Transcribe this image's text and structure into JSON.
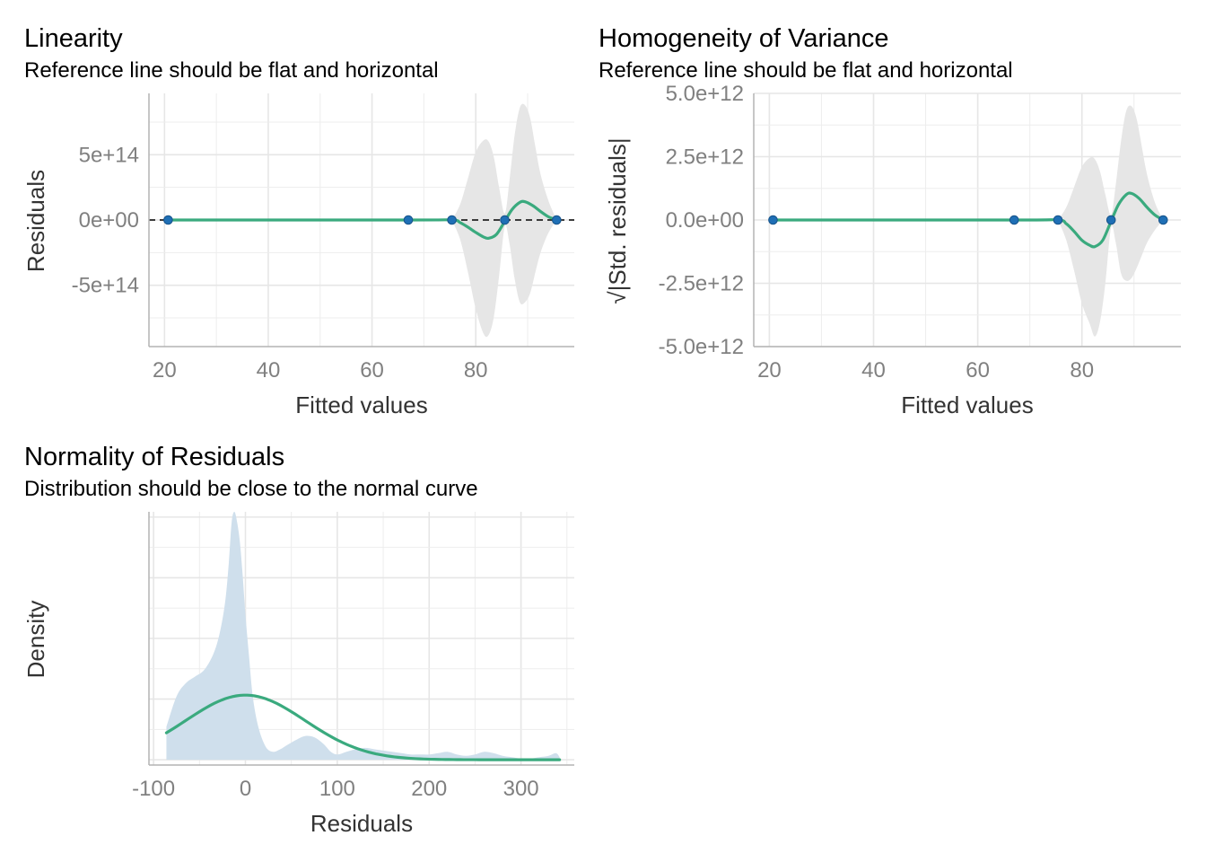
{
  "colors": {
    "fit_line": "#3aaa7e",
    "points": "#1f6fb5",
    "ci_band": "#e6e6e6",
    "density_fill": "#cfdfec",
    "reference_line": "#000000"
  },
  "chart_data": [
    {
      "type": "scatter",
      "title": "Linearity",
      "subtitle": "Reference line should be flat and horizontal",
      "xlabel": "Fitted values",
      "ylabel": "Residuals",
      "xlim": [
        17,
        99
      ],
      "ylim": [
        -970000000000000.0,
        970000000000000.0
      ],
      "x_ticks": [
        20,
        40,
        60,
        80
      ],
      "x_tick_labels": [
        "20",
        "40",
        "60",
        "80"
      ],
      "y_ticks": [
        -500000000000000.0,
        0,
        500000000000000.0
      ],
      "y_tick_labels": [
        "-5e+14",
        "0e+00",
        "5e+14"
      ],
      "reference_line": 0,
      "points": {
        "x": [
          20.7,
          67,
          75.4,
          85.6,
          95.6
        ],
        "y": [
          0,
          0,
          0,
          0,
          0
        ]
      },
      "fit_line": {
        "x": [
          20.7,
          67,
          75.4,
          77,
          78.5,
          80,
          81.5,
          82.5,
          84,
          85.6,
          87,
          88.5,
          89.5,
          91,
          92.5,
          94,
          95.6
        ],
        "y": [
          0,
          0,
          0,
          -20000000000000.0,
          -55000000000000.0,
          -95000000000000.0,
          -130000000000000.0,
          -140000000000000.0,
          -110000000000000.0,
          -10000000000000.0,
          80000000000000.0,
          135000000000000.0,
          140000000000000.0,
          110000000000000.0,
          65000000000000.0,
          25000000000000.0,
          0
        ]
      },
      "ci_band": {
        "x": [
          75.4,
          77,
          78.5,
          80,
          81.5,
          82.5,
          83.5,
          84.5,
          85.6,
          86.5,
          87.5,
          88.5,
          89.5,
          90.5,
          91.5,
          92.5,
          94,
          95.6
        ],
        "upper": [
          0,
          120000000000000.0,
          320000000000000.0,
          520000000000000.0,
          610000000000000.0,
          600000000000000.0,
          480000000000000.0,
          250000000000000.0,
          50000000000000.0,
          300000000000000.0,
          650000000000000.0,
          860000000000000.0,
          880000000000000.0,
          780000000000000.0,
          560000000000000.0,
          350000000000000.0,
          150000000000000.0,
          0
        ],
        "lower": [
          0,
          -150000000000000.0,
          -400000000000000.0,
          -680000000000000.0,
          -870000000000000.0,
          -880000000000000.0,
          -740000000000000.0,
          -430000000000000.0,
          -50000000000000.0,
          -180000000000000.0,
          -450000000000000.0,
          -630000000000000.0,
          -630000000000000.0,
          -560000000000000.0,
          -400000000000000.0,
          -250000000000000.0,
          -100000000000000.0,
          0
        ]
      }
    },
    {
      "type": "scatter",
      "title": "Homogeneity of Variance",
      "subtitle": "Reference line should be flat and horizontal",
      "xlabel": "Fitted values",
      "ylabel": "√|Std. residuals|",
      "xlim": [
        17,
        99
      ],
      "ylim": [
        -5000000000000.0,
        5000000000000.0
      ],
      "x_ticks": [
        20,
        40,
        60,
        80
      ],
      "x_tick_labels": [
        "20",
        "40",
        "60",
        "80"
      ],
      "y_ticks": [
        -5000000000000.0,
        -2500000000000.0,
        0,
        2500000000000.0,
        5000000000000.0
      ],
      "y_tick_labels": [
        "-5.0e+12",
        "-2.5e+12",
        "0.0e+00",
        "2.5e+12",
        "5.0e+12"
      ],
      "points": {
        "x": [
          20.7,
          67,
          75.4,
          85.6,
          95.6
        ],
        "y": [
          0,
          0,
          0,
          0,
          0
        ]
      },
      "fit_line": {
        "x": [
          20.7,
          67,
          75.4,
          77,
          78.5,
          80,
          81.5,
          82.5,
          84,
          85.6,
          87,
          88.5,
          89.5,
          91,
          92.5,
          94,
          95.6
        ],
        "y": [
          0,
          0,
          0,
          -150000000000.0,
          -450000000000.0,
          -800000000000.0,
          -1000000000000.0,
          -1050000000000.0,
          -800000000000.0,
          -50000000000.0,
          600000000000.0,
          1000000000000.0,
          1050000000000.0,
          850000000000.0,
          500000000000.0,
          200000000000.0,
          0
        ]
      },
      "ci_band": {
        "x": [
          75.4,
          77,
          78.5,
          80,
          81.5,
          82.5,
          83.5,
          84.5,
          85.6,
          86.5,
          87.5,
          88.5,
          89.5,
          90.5,
          91.5,
          92.5,
          94,
          95.6
        ],
        "upper": [
          0,
          500000000000.0,
          1300000000000.0,
          2100000000000.0,
          2450000000000.0,
          2400000000000.0,
          1900000000000.0,
          1000000000000.0,
          200000000000.0,
          1400000000000.0,
          3100000000000.0,
          4300000000000.0,
          4500000000000.0,
          4000000000000.0,
          2900000000000.0,
          1800000000000.0,
          700000000000.0,
          0
        ],
        "lower": [
          0,
          -800000000000.0,
          -2000000000000.0,
          -3300000000000.0,
          -4100000000000.0,
          -4600000000000.0,
          -4000000000000.0,
          -2500000000000.0,
          -300000000000.0,
          -900000000000.0,
          -2100000000000.0,
          -2400000000000.0,
          -2300000000000.0,
          -1900000000000.0,
          -1400000000000.0,
          -900000000000.0,
          -400000000000.0,
          0
        ]
      }
    },
    {
      "type": "area",
      "title": "Normality of Residuals",
      "subtitle": "Distribution should be close to the normal curve",
      "xlabel": "Residuals",
      "ylabel": "Density",
      "xlim": [
        -105,
        358
      ],
      "ylim": [
        -0.0004,
        0.0188
      ],
      "x_ticks": [
        -100,
        0,
        100,
        200,
        300
      ],
      "x_tick_labels": [
        "-100",
        "0",
        "100",
        "200",
        "300"
      ],
      "y_gridlines": [
        0,
        0.0046,
        0.0092,
        0.0138,
        0.0184
      ],
      "density": {
        "x": [
          -86,
          -75,
          -65,
          -55,
          -45,
          -35,
          -28,
          -22,
          -18,
          -15,
          -12,
          -9,
          -6,
          -3,
          0,
          4,
          8,
          14,
          22,
          30,
          38,
          45,
          55,
          65,
          75,
          85,
          93,
          100,
          110,
          120,
          130,
          140,
          150,
          160,
          170,
          180,
          190,
          200,
          210,
          220,
          230,
          240,
          250,
          260,
          270,
          280,
          290,
          300,
          310,
          320,
          330,
          338,
          342
        ],
        "y": [
          0.0025,
          0.0048,
          0.0058,
          0.0063,
          0.0068,
          0.008,
          0.0096,
          0.012,
          0.015,
          0.018,
          0.0188,
          0.018,
          0.0165,
          0.014,
          0.011,
          0.0078,
          0.0048,
          0.0025,
          0.001,
          0.0006,
          0.0008,
          0.0011,
          0.0015,
          0.0018,
          0.0017,
          0.0012,
          0.0006,
          0.0004,
          0.0006,
          0.0008,
          0.0009,
          0.0008,
          0.0007,
          0.0006,
          0.0005,
          0.0004,
          0.0004,
          0.0004,
          0.0005,
          0.0006,
          0.0004,
          0.0003,
          0.0004,
          0.0006,
          0.0005,
          0.0003,
          0.0002,
          0.0001,
          0.0001,
          0.0002,
          0.0003,
          0.0005,
          0.0002
        ]
      },
      "normal_curve": {
        "mean": 0,
        "sd": 65,
        "scale": 0.0049,
        "from": -86,
        "to": 342
      }
    }
  ]
}
